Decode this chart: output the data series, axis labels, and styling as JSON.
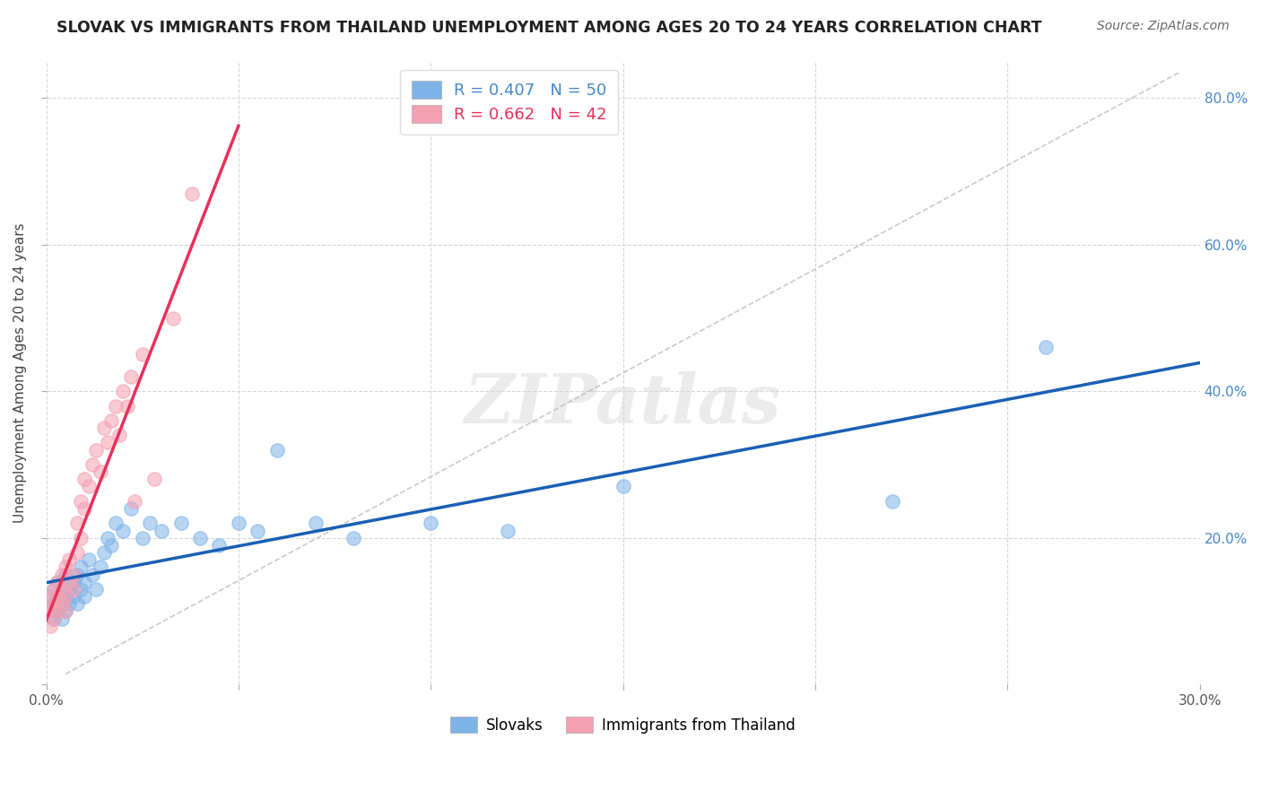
{
  "title": "SLOVAK VS IMMIGRANTS FROM THAILAND UNEMPLOYMENT AMONG AGES 20 TO 24 YEARS CORRELATION CHART",
  "source": "Source: ZipAtlas.com",
  "ylabel": "Unemployment Among Ages 20 to 24 years",
  "xlim": [
    0.0,
    0.3
  ],
  "ylim": [
    0.0,
    0.85
  ],
  "legend1_label": "R = 0.407   N = 50",
  "legend2_label": "R = 0.662   N = 42",
  "legend3_label": "Slovaks",
  "legend4_label": "Immigrants from Thailand",
  "slovaks_color": "#7EB3E8",
  "thailand_color": "#F4A0B0",
  "trendline_slovak_color": "#1A5FB4",
  "trendline_thailand_color": "#E8305A",
  "diagonal_color": "#BBBBBB",
  "watermark": "ZIPatlas",
  "slovaks_x": [
    0.001,
    0.001,
    0.002,
    0.002,
    0.002,
    0.003,
    0.003,
    0.003,
    0.004,
    0.004,
    0.004,
    0.005,
    0.005,
    0.005,
    0.006,
    0.006,
    0.007,
    0.007,
    0.008,
    0.008,
    0.009,
    0.009,
    0.01,
    0.01,
    0.011,
    0.012,
    0.013,
    0.014,
    0.015,
    0.016,
    0.017,
    0.018,
    0.02,
    0.022,
    0.025,
    0.027,
    0.03,
    0.035,
    0.04,
    0.045,
    0.05,
    0.055,
    0.06,
    0.07,
    0.08,
    0.1,
    0.12,
    0.15,
    0.22,
    0.26
  ],
  "slovaks_y": [
    0.12,
    0.1,
    0.13,
    0.09,
    0.11,
    0.12,
    0.1,
    0.14,
    0.11,
    0.13,
    0.09,
    0.12,
    0.15,
    0.1,
    0.13,
    0.11,
    0.14,
    0.12,
    0.15,
    0.11,
    0.13,
    0.16,
    0.14,
    0.12,
    0.17,
    0.15,
    0.13,
    0.16,
    0.18,
    0.2,
    0.19,
    0.22,
    0.21,
    0.24,
    0.2,
    0.22,
    0.21,
    0.22,
    0.2,
    0.19,
    0.22,
    0.21,
    0.32,
    0.22,
    0.2,
    0.22,
    0.21,
    0.27,
    0.25,
    0.46
  ],
  "thailand_x": [
    0.001,
    0.001,
    0.001,
    0.002,
    0.002,
    0.002,
    0.003,
    0.003,
    0.003,
    0.004,
    0.004,
    0.004,
    0.005,
    0.005,
    0.005,
    0.006,
    0.006,
    0.007,
    0.007,
    0.008,
    0.008,
    0.009,
    0.009,
    0.01,
    0.01,
    0.011,
    0.012,
    0.013,
    0.014,
    0.015,
    0.016,
    0.017,
    0.018,
    0.019,
    0.02,
    0.021,
    0.022,
    0.023,
    0.025,
    0.028,
    0.033,
    0.038
  ],
  "thailand_y": [
    0.1,
    0.08,
    0.12,
    0.11,
    0.09,
    0.13,
    0.12,
    0.1,
    0.14,
    0.11,
    0.13,
    0.15,
    0.12,
    0.16,
    0.1,
    0.14,
    0.17,
    0.15,
    0.13,
    0.18,
    0.22,
    0.2,
    0.25,
    0.24,
    0.28,
    0.27,
    0.3,
    0.32,
    0.29,
    0.35,
    0.33,
    0.36,
    0.38,
    0.34,
    0.4,
    0.38,
    0.42,
    0.25,
    0.45,
    0.28,
    0.5,
    0.67
  ]
}
